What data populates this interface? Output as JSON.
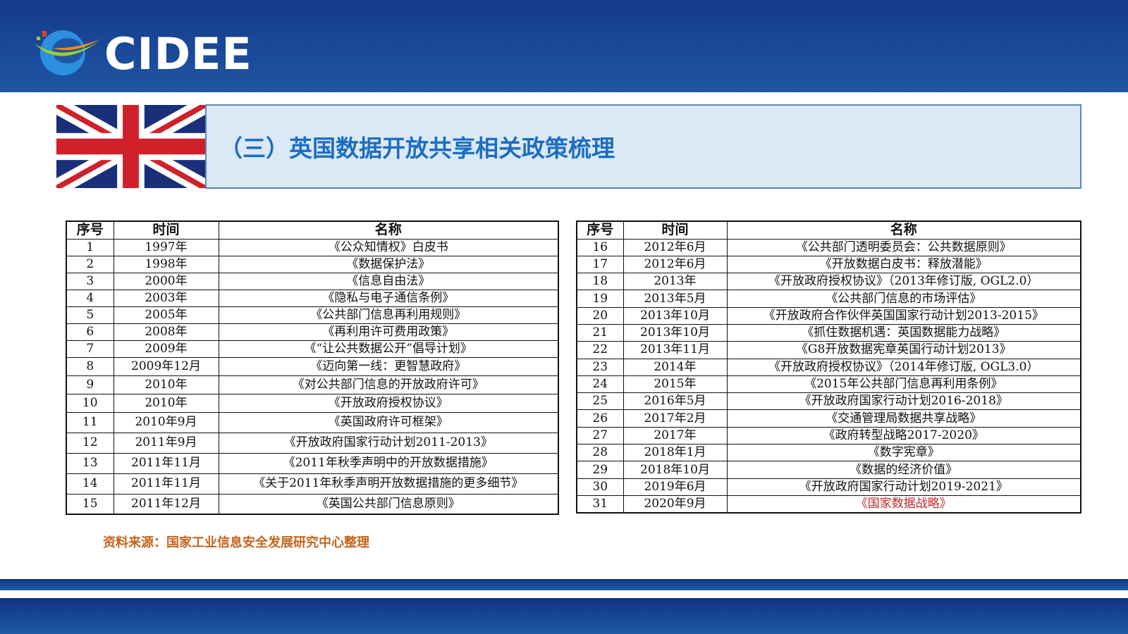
{
  "header": {
    "logo_text": "CIDEE"
  },
  "title": "（三）英国数据开放共享相关政策梳理",
  "colors": {
    "header_blue": "#1e56a4",
    "title_blue": "#1c6ec1",
    "title_box_bg": "#dbe8f6",
    "source_orange": "#c5641c",
    "highlight_red": "#c0282d"
  },
  "columns": [
    "序号",
    "时间",
    "名称"
  ],
  "left_rows": [
    [
      "1",
      "1997年",
      "《公众知情权》白皮书"
    ],
    [
      "2",
      "1998年",
      "《数据保护法》"
    ],
    [
      "3",
      "2000年",
      "《信息自由法》"
    ],
    [
      "4",
      "2003年",
      "《隐私与电子通信条例》"
    ],
    [
      "5",
      "2005年",
      "《公共部门信息再利用规则》"
    ],
    [
      "6",
      "2008年",
      "《再利用许可费用政策》"
    ],
    [
      "7",
      "2009年",
      "《“让公共数据公开”倡导计划》"
    ],
    [
      "8",
      "2009年12月",
      "《迈向第一线：更智慧政府》"
    ],
    [
      "9",
      "2010年",
      "《对公共部门信息的开放政府许可》"
    ],
    [
      "10",
      "2010年",
      "《开放政府授权协议》"
    ],
    [
      "11",
      "2010年9月",
      "《英国政府许可框架》"
    ],
    [
      "12",
      "2011年9月",
      "《开放政府国家行动计划2011-2013》"
    ],
    [
      "13",
      "2011年11月",
      "《2011年秋季声明中的开放数据措施》"
    ],
    [
      "14",
      "2011年11月",
      "《关于2011年秋季声明开放数据措施的更多细节》"
    ],
    [
      "15",
      "2011年12月",
      "《英国公共部门信息原则》"
    ]
  ],
  "right_rows": [
    [
      "16",
      "2012年6月",
      "《公共部门透明委员会：公共数据原则》"
    ],
    [
      "17",
      "2012年6月",
      "《开放数据白皮书：释放潜能》"
    ],
    [
      "18",
      "2013年",
      "《开放政府授权协议》（2013年修订版, OGL2.0）"
    ],
    [
      "19",
      "2013年5月",
      "《公共部门信息的市场评估》"
    ],
    [
      "20",
      "2013年10月",
      "《开放政府合作伙伴英国国家行动计划2013-2015》"
    ],
    [
      "21",
      "2013年10月",
      "《抓住数据机遇：英国数据能力战略》"
    ],
    [
      "22",
      "2013年11月",
      "《G8开放数据宪章英国行动计划2013》"
    ],
    [
      "23",
      "2014年",
      "《开放政府授权协议》（2014年修订版, OGL3.0）"
    ],
    [
      "24",
      "2015年",
      "《2015年公共部门信息再利用条例》"
    ],
    [
      "25",
      "2016年5月",
      "《开放政府国家行动计划2016-2018》"
    ],
    [
      "26",
      "2017年2月",
      "《交通管理局数据共享战略》"
    ],
    [
      "27",
      "2017年",
      "《政府转型战略2017-2020》"
    ],
    [
      "28",
      "2018年1月",
      "《数字宪章》"
    ],
    [
      "29",
      "2018年10月",
      "《数据的经济价值》"
    ],
    [
      "30",
      "2019年6月",
      "《开放政府国家行动计划2019-2021》"
    ],
    [
      "31",
      "2020年9月",
      "《国家数据战略》"
    ]
  ],
  "highlighted_row": "31",
  "source": "资料来源：国家工业信息安全发展研究中心整理"
}
